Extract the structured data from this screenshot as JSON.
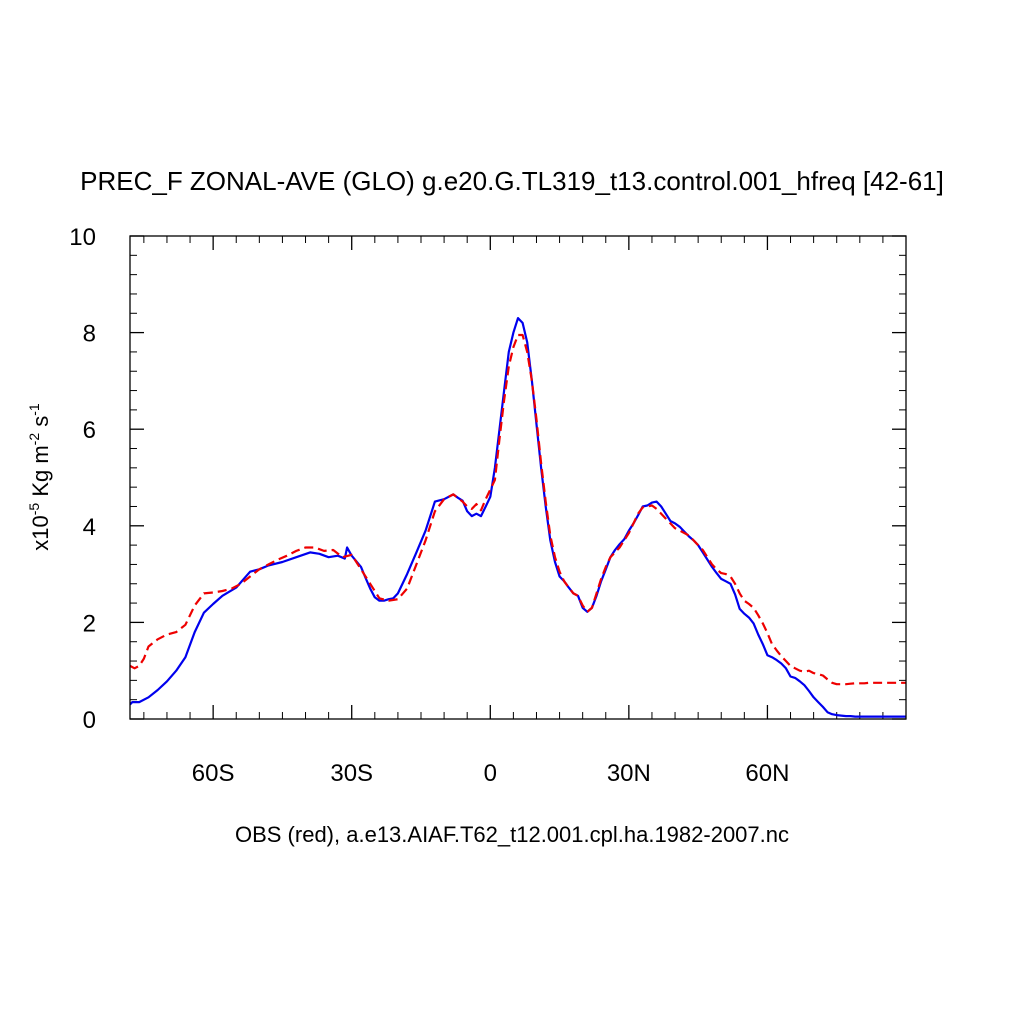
{
  "chart_data": {
    "type": "line",
    "title": "PREC_F ZONAL-AVE (GLO) g.e20.G.TL319_t13.control.001_hfreq [42-61]",
    "subtitle": "OBS (red), a.e13.AIAF.T62_t12.001.cpl.ha.1982-2007.nc",
    "ylabel": {
      "prefix": "x10",
      "exp1": "-5",
      "mid": " Kg m",
      "exp2": "-2",
      "mid2": " s",
      "exp3": "-1"
    },
    "xlim": [
      -78,
      90
    ],
    "ylim": [
      0,
      10
    ],
    "x_ticks": [
      {
        "value": -60,
        "label": "60S"
      },
      {
        "value": -30,
        "label": "30S"
      },
      {
        "value": 0,
        "label": "0"
      },
      {
        "value": 30,
        "label": "30N"
      },
      {
        "value": 60,
        "label": "60N"
      }
    ],
    "y_ticks": [
      {
        "value": 0,
        "label": "0"
      },
      {
        "value": 2,
        "label": "2"
      },
      {
        "value": 4,
        "label": "4"
      },
      {
        "value": 6,
        "label": "6"
      },
      {
        "value": 8,
        "label": "8"
      },
      {
        "value": 10,
        "label": "10"
      }
    ],
    "grid": false,
    "series": [
      {
        "color": "#0000ee",
        "dash": "solid",
        "x": [
          -78,
          -77.5,
          -76,
          -74,
          -72,
          -70,
          -68,
          -66,
          -64,
          -62,
          -60,
          -58,
          -55,
          -52,
          -50,
          -48,
          -45,
          -42,
          -39,
          -37,
          -35,
          -33,
          -31.5,
          -31,
          -30,
          -28,
          -27,
          -26,
          -25,
          -24,
          -23,
          -22,
          -21,
          -20,
          -18,
          -16,
          -14,
          -12,
          -10,
          -8,
          -7,
          -6,
          -5,
          -4,
          -3,
          -2,
          -1,
          0,
          1,
          2,
          3,
          4,
          5,
          6,
          7,
          8,
          9,
          10,
          11,
          12,
          13,
          14,
          15,
          16,
          17,
          18,
          19,
          20,
          21,
          22,
          23,
          24,
          25,
          26,
          27,
          28,
          29,
          30,
          31,
          32,
          33,
          34,
          35,
          36,
          37,
          38,
          39,
          40,
          41,
          42,
          43,
          44,
          45,
          46,
          47,
          48,
          49,
          50,
          51,
          52,
          53,
          54,
          55,
          56,
          57,
          58,
          59,
          60,
          61,
          62,
          63,
          64,
          65,
          66,
          67,
          68,
          69,
          70,
          71,
          72,
          73,
          74,
          75,
          76,
          77,
          78,
          79,
          80,
          81,
          82,
          83,
          84,
          85,
          86,
          87,
          88,
          89,
          90
        ],
        "y": [
          0.3,
          0.35,
          0.35,
          0.45,
          0.6,
          0.78,
          1.0,
          1.28,
          1.8,
          2.2,
          2.38,
          2.55,
          2.72,
          3.05,
          3.1,
          3.18,
          3.25,
          3.35,
          3.45,
          3.42,
          3.35,
          3.38,
          3.32,
          3.55,
          3.38,
          3.15,
          2.92,
          2.7,
          2.52,
          2.45,
          2.45,
          2.48,
          2.5,
          2.6,
          3.0,
          3.45,
          3.9,
          4.5,
          4.55,
          4.65,
          4.58,
          4.52,
          4.3,
          4.2,
          4.25,
          4.2,
          4.4,
          4.6,
          5.2,
          6.0,
          6.8,
          7.6,
          8.0,
          8.3,
          8.2,
          7.8,
          7.0,
          6.1,
          5.2,
          4.4,
          3.7,
          3.25,
          2.95,
          2.85,
          2.72,
          2.6,
          2.55,
          2.3,
          2.22,
          2.3,
          2.55,
          2.85,
          3.1,
          3.35,
          3.5,
          3.62,
          3.72,
          3.9,
          4.05,
          4.22,
          4.4,
          4.42,
          4.48,
          4.5,
          4.4,
          4.25,
          4.1,
          4.05,
          3.98,
          3.88,
          3.78,
          3.7,
          3.6,
          3.45,
          3.3,
          3.15,
          3.02,
          2.9,
          2.85,
          2.8,
          2.58,
          2.28,
          2.18,
          2.1,
          1.98,
          1.75,
          1.55,
          1.32,
          1.28,
          1.22,
          1.15,
          1.05,
          0.88,
          0.85,
          0.78,
          0.7,
          0.58,
          0.45,
          0.35,
          0.25,
          0.14,
          0.1,
          0.08,
          0.07,
          0.06,
          0.06,
          0.05,
          0.05,
          0.05,
          0.05,
          0.05,
          0.05,
          0.05,
          0.05,
          0.05,
          0.05,
          0.05,
          0.05
        ]
      },
      {
        "color": "#ee0000",
        "dash": "dashed",
        "x": [
          -78,
          -77,
          -76,
          -75,
          -74,
          -72,
          -70,
          -68,
          -66,
          -64,
          -62,
          -60,
          -58,
          -56,
          -54,
          -52,
          -50,
          -48,
          -46,
          -44,
          -42,
          -40,
          -38,
          -36,
          -34,
          -32,
          -30,
          -28,
          -26,
          -24,
          -22,
          -20,
          -18,
          -16,
          -14,
          -12,
          -10,
          -8,
          -6,
          -5,
          -4,
          -3,
          -2,
          -1,
          0,
          1,
          2,
          3,
          4,
          5,
          6,
          7,
          8,
          9,
          10,
          11,
          12,
          13,
          14,
          15,
          16,
          17,
          18,
          19,
          20,
          21,
          22,
          23,
          24,
          25,
          26,
          27,
          28,
          29,
          30,
          31,
          32,
          33,
          34,
          35,
          36,
          37,
          38,
          39,
          40,
          41,
          42,
          43,
          44,
          45,
          46,
          47,
          48,
          49,
          50,
          51,
          52,
          53,
          54,
          55,
          56,
          57,
          58,
          59,
          60,
          61,
          62,
          63,
          64,
          65,
          66,
          67,
          68,
          69,
          70,
          71,
          72,
          73,
          74,
          75,
          76,
          77,
          78,
          79,
          80,
          81,
          82,
          83,
          84,
          85,
          86,
          87,
          88,
          89,
          90
        ],
        "y": [
          1.1,
          1.05,
          1.1,
          1.25,
          1.5,
          1.65,
          1.75,
          1.8,
          1.95,
          2.35,
          2.6,
          2.62,
          2.65,
          2.7,
          2.8,
          2.95,
          3.1,
          3.2,
          3.3,
          3.38,
          3.48,
          3.55,
          3.55,
          3.48,
          3.5,
          3.35,
          3.4,
          3.1,
          2.8,
          2.5,
          2.45,
          2.48,
          2.7,
          3.2,
          3.7,
          4.3,
          4.55,
          4.65,
          4.5,
          4.4,
          4.35,
          4.45,
          4.32,
          4.55,
          4.75,
          4.95,
          5.8,
          6.6,
          7.3,
          7.7,
          7.95,
          7.95,
          7.6,
          7.0,
          6.2,
          5.3,
          4.5,
          3.8,
          3.35,
          3.05,
          2.85,
          2.72,
          2.6,
          2.55,
          2.35,
          2.22,
          2.3,
          2.6,
          2.9,
          3.15,
          3.35,
          3.45,
          3.55,
          3.7,
          3.85,
          4.05,
          4.25,
          4.38,
          4.4,
          4.42,
          4.35,
          4.25,
          4.15,
          4.05,
          3.95,
          3.9,
          3.85,
          3.8,
          3.7,
          3.6,
          3.5,
          3.35,
          3.2,
          3.1,
          3.02,
          3.0,
          2.95,
          2.8,
          2.6,
          2.45,
          2.38,
          2.3,
          2.15,
          1.98,
          1.78,
          1.55,
          1.42,
          1.3,
          1.2,
          1.1,
          1.05,
          1.0,
          0.98,
          1.0,
          0.95,
          0.93,
          0.9,
          0.82,
          0.75,
          0.72,
          0.72,
          0.72,
          0.73,
          0.74,
          0.74,
          0.74,
          0.75,
          0.75,
          0.75,
          0.75,
          0.75,
          0.75,
          0.75,
          0.75,
          0.75
        ]
      }
    ]
  }
}
